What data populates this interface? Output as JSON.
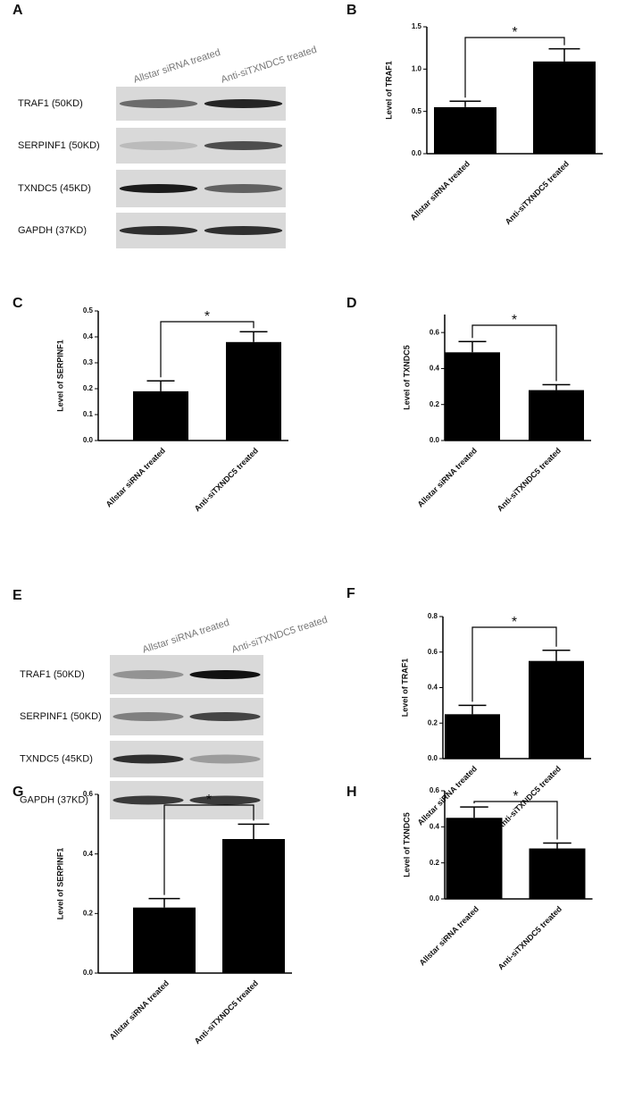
{
  "blots": [
    {
      "panel": "A",
      "columns": [
        "Allstar siRNA treated",
        "Anti-siTXNDC5 treated"
      ],
      "rows": [
        "TRAF1 (50KD)",
        "SERPINF1 (50KD)",
        "TXNDC5 (45KD)",
        "GAPDH (37KD)"
      ]
    },
    {
      "panel": "E",
      "columns": [
        "Allstar siRNA treated",
        "Anti-siTXNDC5 treated"
      ],
      "rows": [
        "TRAF1 (50KD)",
        "SERPINF1 (50KD)",
        "TXNDC5 (45KD)",
        "GAPDH (37KD)"
      ]
    }
  ],
  "chart_data": [
    {
      "type": "bar",
      "panel": "B",
      "ylabel": "Level of TRAF1",
      "categories": [
        "Allstar siRNA treated",
        "Anti-siTXNDC5 treated"
      ],
      "values": [
        0.55,
        1.09
      ],
      "errors": [
        0.07,
        0.15
      ],
      "color": "#000000",
      "annotation": "*",
      "ylim": [
        0,
        1.5
      ],
      "yticks": [
        {
          "value": 0,
          "label": "0.0"
        },
        0.5,
        {
          "value": 1,
          "label": "1.0"
        },
        1.5
      ]
    },
    {
      "type": "bar",
      "panel": "C",
      "ylabel": "Level of SERPINF1",
      "categories": [
        "Allstar siRNA treated",
        "Anti-siTXNDC5 treated"
      ],
      "values": [
        0.19,
        0.38
      ],
      "errors": [
        0.04,
        0.04
      ],
      "color": "#000000",
      "annotation": "*",
      "ylim": [
        0,
        0.5
      ],
      "yticks": [
        {
          "value": 0,
          "label": "0.0"
        },
        0.1,
        0.2,
        0.3,
        0.4,
        0.5
      ]
    },
    {
      "type": "bar",
      "panel": "D",
      "ylabel": "Level of TXNDC5",
      "categories": [
        "Allstar siRNA treated",
        "Anti-siTXNDC5 treated"
      ],
      "values": [
        0.49,
        0.28
      ],
      "errors": [
        0.06,
        0.03
      ],
      "color": "#000000",
      "annotation": "*",
      "ylim": [
        0,
        0.7
      ],
      "yticks": [
        {
          "value": 0,
          "label": "0.0"
        },
        0.2,
        0.4,
        0.6
      ]
    },
    {
      "type": "bar",
      "panel": "F",
      "ylabel": "Level of TRAF1",
      "categories": [
        "Allstar siRNA treated",
        "Anti-siTXNDC5 treated"
      ],
      "values": [
        0.25,
        0.55
      ],
      "errors": [
        0.05,
        0.06
      ],
      "color": "#000000",
      "annotation": "*",
      "ylim": [
        0,
        0.8
      ],
      "yticks": [
        {
          "value": 0,
          "label": "0.0"
        },
        0.2,
        0.4,
        0.6,
        0.8
      ]
    },
    {
      "type": "bar",
      "panel": "G",
      "ylabel": "Level of SERPINF1",
      "categories": [
        "Allstar siRNA treated",
        "Anti-siTXNDC5 treated"
      ],
      "values": [
        0.22,
        0.45
      ],
      "errors": [
        0.03,
        0.05
      ],
      "color": "#000000",
      "annotation": "*",
      "ylim": [
        0,
        0.6
      ],
      "yticks": [
        {
          "value": 0,
          "label": "0.0"
        },
        0.2,
        0.4,
        0.6
      ]
    },
    {
      "type": "bar",
      "panel": "H",
      "ylabel": "Level of TXNDC5",
      "categories": [
        "Allstar siRNA treated",
        "Anti-siTXNDC5 treated"
      ],
      "values": [
        0.45,
        0.28
      ],
      "errors": [
        0.06,
        0.03
      ],
      "color": "#000000",
      "annotation": "*",
      "ylim": [
        0,
        0.6
      ],
      "yticks": [
        {
          "value": 0,
          "label": "0.0"
        },
        0.2,
        0.4,
        0.6
      ]
    }
  ]
}
